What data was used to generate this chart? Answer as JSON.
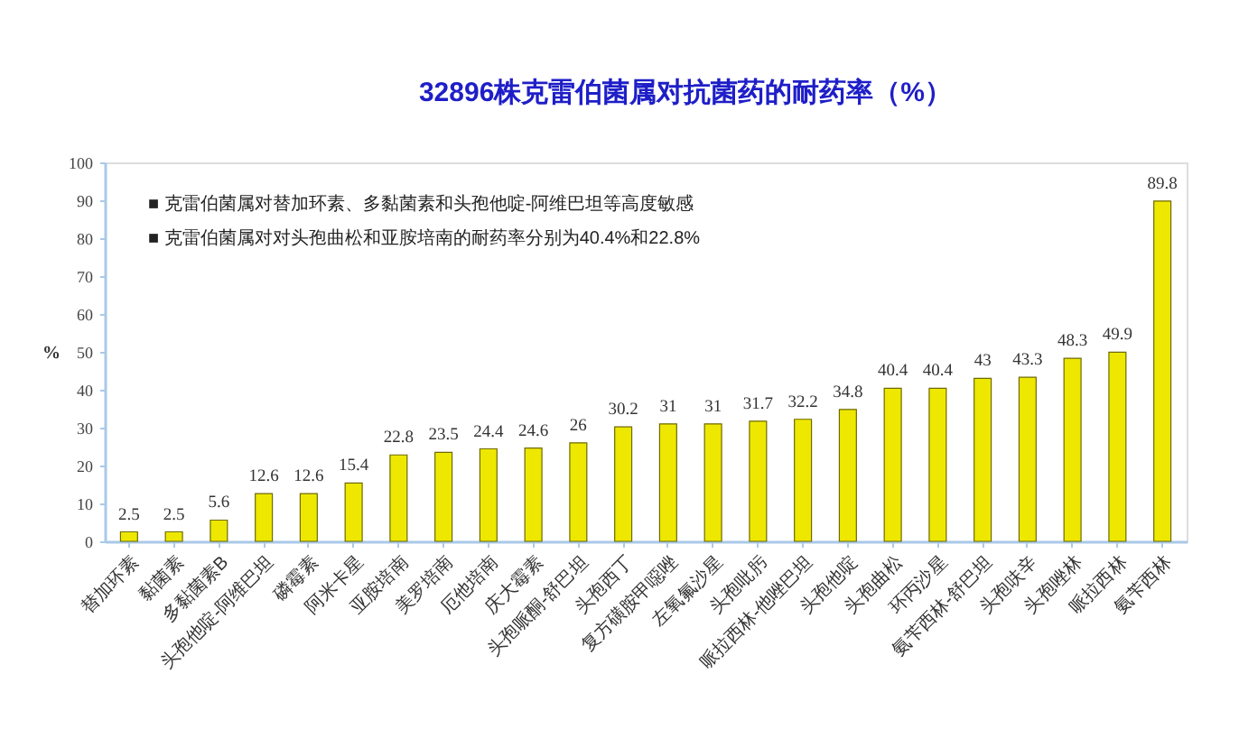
{
  "chart_data": {
    "type": "bar",
    "title": "32896株克雷伯菌属对抗菌药的耐药率（%）",
    "ylabel": "%",
    "categories": [
      "替加环素",
      "黏菌素",
      "多黏菌素B",
      "头孢他啶-阿维巴坦",
      "磷霉素",
      "阿米卡星",
      "亚胺培南",
      "美罗培南",
      "厄他培南",
      "庆大霉素",
      "头孢哌酮-舒巴坦",
      "头孢西丁",
      "复方磺胺甲噁唑",
      "左氧氟沙星",
      "头孢吡肟",
      "哌拉西林-他唑巴坦",
      "头孢他啶",
      "头孢曲松",
      "环丙沙星",
      "氨苄西林-舒巴坦",
      "头孢呋辛",
      "头孢唑林",
      "哌拉西林",
      "氨苄西林"
    ],
    "values": [
      2.5,
      2.5,
      5.6,
      12.6,
      12.6,
      15.4,
      22.8,
      23.5,
      24.4,
      24.6,
      26,
      30.2,
      31,
      31,
      31.7,
      32.2,
      34.8,
      40.4,
      40.4,
      43,
      43.3,
      48.3,
      49.9,
      89.8
    ],
    "color": "#eee800",
    "ylim": [
      0,
      100
    ],
    "yticks": [
      0,
      10,
      20,
      30,
      40,
      50,
      60,
      70,
      80,
      90,
      100
    ],
    "grid": false,
    "data_labels": true,
    "annotations": [
      "■  克雷伯菌属对替加环素、多黏菌素和头孢他啶-阿维巴坦等高度敏感",
      "■  克雷伯菌属对对头孢曲松和亚胺培南的耐药率分别为40.4%和22.8%"
    ]
  }
}
